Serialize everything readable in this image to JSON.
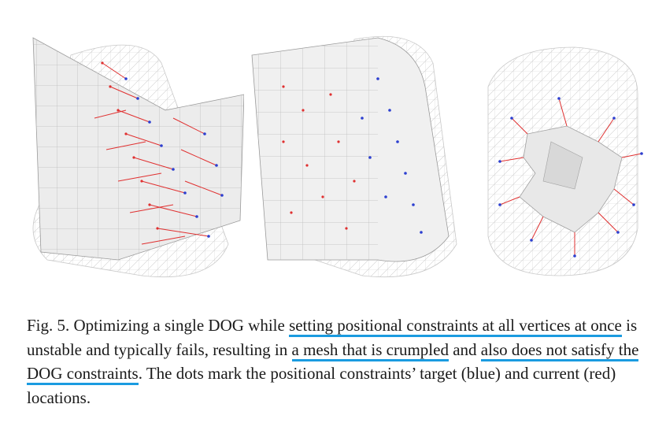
{
  "colors": {
    "underline": "#1a9be0",
    "target_marker": "#2c3fd0",
    "current_marker": "#e03030",
    "mesh_line": "#c4c4c4",
    "surface": "#f2f2f2"
  },
  "caption": {
    "label": "Fig. 5.",
    "segments": [
      {
        "text": " Optimizing a single DOG while ",
        "highlight": false
      },
      {
        "text": "setting positional constraints at all vertices at once",
        "highlight": true
      },
      {
        "text": " is unstable and typically fails, resulting in ",
        "highlight": false
      },
      {
        "text": "a mesh that is crumpled",
        "highlight": true
      },
      {
        "text": " and ",
        "highlight": false
      },
      {
        "text": "also does not satisfy the DOG constraints",
        "highlight": true
      },
      {
        "text": ". The dots mark the positional constraints’ target (blue) and current (red) locations.",
        "highlight": false
      }
    ]
  }
}
